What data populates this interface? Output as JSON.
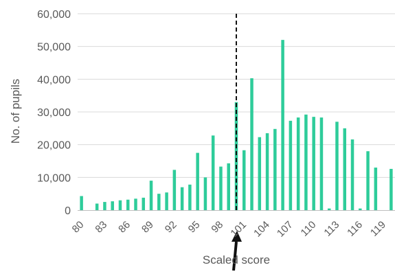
{
  "chart_data": {
    "type": "bar",
    "title": "",
    "xlabel": "Scaled score",
    "ylabel": "No. of pupils",
    "ylim": [
      0,
      60000
    ],
    "yticks": [
      "0",
      "10,000",
      "20,000",
      "30,000",
      "40,000",
      "50,000",
      "60,000"
    ],
    "ytick_values": [
      0,
      10000,
      20000,
      30000,
      40000,
      50000,
      60000
    ],
    "xticks": [
      "80",
      "83",
      "86",
      "89",
      "92",
      "95",
      "98",
      "101",
      "104",
      "107",
      "110",
      "113",
      "116",
      "119"
    ],
    "xtick_values": [
      80,
      83,
      86,
      89,
      92,
      95,
      98,
      101,
      104,
      107,
      110,
      113,
      116,
      119
    ],
    "x_range": [
      80,
      120
    ],
    "x": [
      80,
      81,
      82,
      83,
      84,
      85,
      86,
      87,
      88,
      89,
      90,
      91,
      92,
      93,
      94,
      95,
      96,
      97,
      98,
      99,
      100,
      101,
      102,
      103,
      104,
      105,
      106,
      107,
      108,
      109,
      110,
      111,
      112,
      113,
      114,
      115,
      116,
      117,
      118,
      119,
      120
    ],
    "values": [
      4300,
      0,
      2000,
      2500,
      2700,
      3000,
      3200,
      3500,
      3800,
      9000,
      5000,
      5400,
      12300,
      7000,
      7800,
      17500,
      10000,
      22800,
      13300,
      14300,
      33000,
      18300,
      40300,
      22300,
      23500,
      24800,
      52000,
      27300,
      28300,
      29200,
      28500,
      28300,
      500,
      27000,
      25000,
      21600,
      500,
      18000,
      13000,
      0,
      12600
    ],
    "threshold": {
      "x": 100,
      "style": "dashed"
    },
    "colors": {
      "bar": "#2ecc9a",
      "grid": "#d9d9d9",
      "axis": "#bfbfbf",
      "text": "#595959",
      "threshold": "#111111",
      "arrow": "#111111"
    },
    "grid": true,
    "legend": "none",
    "annotations": [
      {
        "type": "arrow",
        "points_to_x": 100
      }
    ]
  }
}
